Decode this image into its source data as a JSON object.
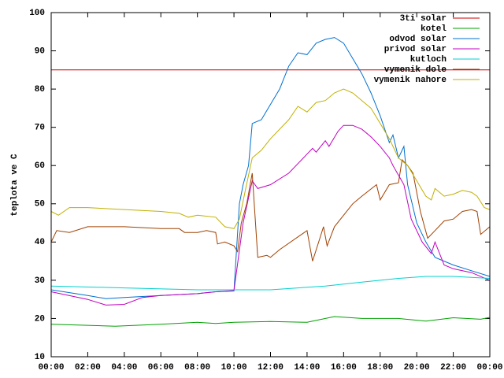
{
  "chart_data": {
    "type": "line",
    "y_label": "teplota ve C",
    "xlim": [
      0,
      24
    ],
    "xticks": [
      {
        "value": 0,
        "label": "00:00"
      },
      {
        "value": 2,
        "label": "02:00"
      },
      {
        "value": 4,
        "label": "04:00"
      },
      {
        "value": 6,
        "label": "06:00"
      },
      {
        "value": 8,
        "label": "08:00"
      },
      {
        "value": 10,
        "label": "10:00"
      },
      {
        "value": 12,
        "label": "12:00"
      },
      {
        "value": 14,
        "label": "14:00"
      },
      {
        "value": 16,
        "label": "16:00"
      },
      {
        "value": 18,
        "label": "18:00"
      },
      {
        "value": 20,
        "label": "20:00"
      },
      {
        "value": 22,
        "label": "22:00"
      },
      {
        "value": 24,
        "label": "00:00"
      }
    ],
    "ylim": [
      10,
      100
    ],
    "yticks": [
      10,
      20,
      30,
      40,
      50,
      60,
      70,
      80,
      90,
      100
    ],
    "grid": false,
    "legend": "top-right",
    "series": [
      {
        "name": "3ti solar",
        "color": "#cc0000",
        "x": [
          0,
          24
        ],
        "values": [
          85,
          85
        ]
      },
      {
        "name": "kotel",
        "color": "#00a000",
        "x": [
          0,
          3.5,
          6,
          8,
          9,
          10,
          12,
          14,
          15.5,
          17,
          19,
          20.5,
          22,
          23.5,
          24
        ],
        "values": [
          18.5,
          18,
          18.5,
          19,
          18.7,
          19,
          19.2,
          19,
          20.5,
          20,
          20,
          19.3,
          20.2,
          19.8,
          20.3
        ]
      },
      {
        "name": "odvod solar",
        "color": "#0070d0",
        "x": [
          0,
          2,
          3,
          4,
          6,
          8,
          9,
          10,
          10.3,
          10.5,
          10.8,
          11,
          11.5,
          12,
          12.5,
          13,
          13.5,
          14,
          14.5,
          15,
          15.5,
          16,
          16.5,
          17,
          17.5,
          18,
          18.5,
          18.7,
          19,
          19.3,
          19.5,
          20,
          20.5,
          21,
          22,
          23,
          24
        ],
        "values": [
          27.5,
          26,
          25.2,
          25.5,
          26,
          26.5,
          27,
          27.2,
          50,
          55,
          60,
          71,
          72,
          76,
          80,
          86,
          89.5,
          89,
          92,
          93,
          93.5,
          92,
          88,
          84,
          79,
          73,
          66,
          68,
          62,
          65,
          55,
          45,
          40,
          36,
          34,
          32.5,
          31
        ]
      },
      {
        "name": "privod solar",
        "color": "#c000c0",
        "x": [
          0,
          2,
          3,
          4,
          5,
          6,
          8,
          9,
          10,
          10.5,
          11,
          11.3,
          12,
          13,
          14,
          14.3,
          14.5,
          15,
          15.2,
          15.7,
          16,
          16.5,
          17,
          17.5,
          18,
          18.5,
          18.7,
          19.3,
          19.7,
          20.3,
          20.8,
          21,
          21.5,
          22,
          23,
          24
        ],
        "values": [
          27,
          25,
          23.5,
          23.7,
          25.5,
          26,
          26.5,
          27,
          27.3,
          45,
          56,
          54,
          55,
          58,
          63,
          64.5,
          63.5,
          66.5,
          65,
          69,
          70.5,
          70.5,
          69.5,
          67.5,
          65,
          62,
          60,
          55,
          46,
          40,
          37,
          40,
          34,
          33,
          32,
          30
        ]
      },
      {
        "name": "kutloch",
        "color": "#00d0d0",
        "x": [
          0,
          4,
          8,
          12,
          15,
          17,
          19,
          20.5,
          22,
          24
        ],
        "values": [
          28.5,
          28,
          27.5,
          27.5,
          28.5,
          29.5,
          30.5,
          31,
          31,
          30.5
        ]
      },
      {
        "name": "vymenik dole",
        "color": "#a04000",
        "x": [
          0,
          0.3,
          1,
          2,
          4,
          6,
          7,
          7.3,
          8,
          8.5,
          9,
          9.1,
          9.5,
          10,
          10.2,
          10.4,
          10.7,
          11,
          11.3,
          11.8,
          12,
          12.5,
          14,
          14.3,
          14.7,
          14.9,
          15.1,
          15.5,
          16.5,
          17,
          17.8,
          18,
          18.5,
          19,
          19.2,
          19.5,
          19.8,
          20.2,
          20.6,
          21,
          21.5,
          22,
          22.5,
          23,
          23.3,
          23.5,
          24
        ],
        "values": [
          40,
          43,
          42.5,
          44,
          44,
          43.5,
          43.5,
          42.5,
          42.5,
          43,
          42.5,
          39.5,
          40,
          39,
          37.5,
          45,
          50,
          58,
          36,
          36.5,
          36,
          38,
          43,
          35,
          41,
          44,
          39,
          44,
          50,
          52,
          55,
          51,
          55,
          55.5,
          61.5,
          60,
          58,
          48,
          41,
          43,
          45.5,
          46,
          48,
          48.5,
          48,
          42,
          44
        ]
      },
      {
        "name": "vymenik nahore",
        "color": "#c0b000",
        "x": [
          0,
          0.4,
          1,
          2,
          4,
          6,
          7,
          7.5,
          8,
          9,
          9.5,
          10,
          10.3,
          10.6,
          11,
          11.5,
          12,
          13,
          13.5,
          14,
          14.5,
          15,
          15.5,
          16,
          16.5,
          17,
          17.5,
          18,
          18.5,
          19,
          19.5,
          20,
          20.5,
          20.8,
          21,
          21.5,
          22,
          22.5,
          23,
          23.3,
          23.7,
          24
        ],
        "values": [
          48,
          47,
          49,
          49,
          48.5,
          48,
          47.5,
          46.5,
          47,
          46.5,
          44,
          43.5,
          46,
          53,
          62,
          64,
          67,
          72,
          75.5,
          74,
          76.5,
          77,
          79,
          80,
          79,
          77,
          75,
          71,
          67,
          62,
          60,
          56,
          52,
          51,
          54,
          52,
          52.5,
          53.5,
          53,
          52,
          49,
          48.5
        ]
      }
    ]
  }
}
